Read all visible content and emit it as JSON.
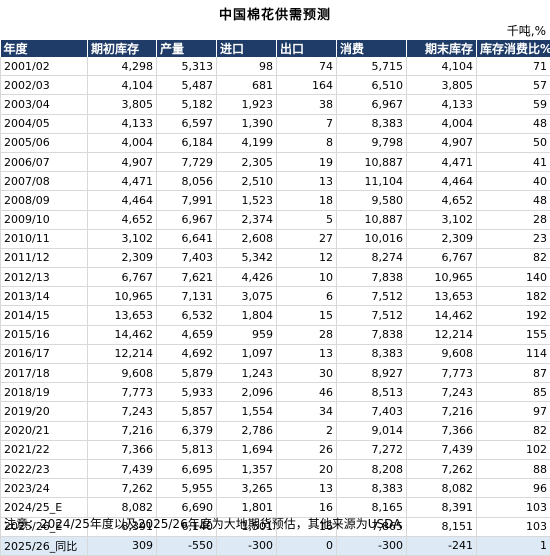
{
  "title": "中国棉花供需预测",
  "unit": "千吨,%",
  "headers": [
    "年度",
    "期初库存",
    "产量",
    "进口",
    "出口",
    "消费",
    "期末库存",
    "库存消费比%"
  ],
  "rows": [
    [
      "2001/02",
      "4,298",
      "5,313",
      "98",
      "74",
      "5,715",
      "4,104",
      "71"
    ],
    [
      "2002/03",
      "4,104",
      "5,487",
      "681",
      "164",
      "6,510",
      "3,805",
      "57"
    ],
    [
      "2003/04",
      "3,805",
      "5,182",
      "1,923",
      "38",
      "6,967",
      "4,133",
      "59"
    ],
    [
      "2004/05",
      "4,133",
      "6,597",
      "1,390",
      "7",
      "8,383",
      "4,004",
      "48"
    ],
    [
      "2005/06",
      "4,004",
      "6,184",
      "4,199",
      "8",
      "9,798",
      "4,907",
      "50"
    ],
    [
      "2006/07",
      "4,907",
      "7,729",
      "2,305",
      "19",
      "10,887",
      "4,471",
      "41"
    ],
    [
      "2007/08",
      "4,471",
      "8,056",
      "2,510",
      "13",
      "11,104",
      "4,464",
      "40"
    ],
    [
      "2008/09",
      "4,464",
      "7,991",
      "1,523",
      "18",
      "9,580",
      "4,652",
      "48"
    ],
    [
      "2009/10",
      "4,652",
      "6,967",
      "2,374",
      "5",
      "10,887",
      "3,102",
      "28"
    ],
    [
      "2010/11",
      "3,102",
      "6,641",
      "2,608",
      "27",
      "10,016",
      "2,309",
      "23"
    ],
    [
      "2011/12",
      "2,309",
      "7,403",
      "5,342",
      "12",
      "8,274",
      "6,767",
      "82"
    ],
    [
      "2012/13",
      "6,767",
      "7,621",
      "4,426",
      "10",
      "7,838",
      "10,965",
      "140"
    ],
    [
      "2013/14",
      "10,965",
      "7,131",
      "3,075",
      "6",
      "7,512",
      "13,653",
      "182"
    ],
    [
      "2014/15",
      "13,653",
      "6,532",
      "1,804",
      "15",
      "7,512",
      "14,462",
      "192"
    ],
    [
      "2015/16",
      "14,462",
      "4,659",
      "959",
      "28",
      "7,838",
      "12,214",
      "155"
    ],
    [
      "2016/17",
      "12,214",
      "4,692",
      "1,097",
      "13",
      "8,383",
      "9,608",
      "114"
    ],
    [
      "2017/18",
      "9,608",
      "5,879",
      "1,243",
      "30",
      "8,927",
      "7,773",
      "87"
    ],
    [
      "2018/19",
      "7,773",
      "5,933",
      "2,096",
      "46",
      "8,513",
      "7,243",
      "85"
    ],
    [
      "2019/20",
      "7,243",
      "5,857",
      "1,554",
      "34",
      "7,403",
      "7,216",
      "97"
    ],
    [
      "2020/21",
      "7,216",
      "6,379",
      "2,786",
      "2",
      "9,014",
      "7,366",
      "82"
    ],
    [
      "2021/22",
      "7,366",
      "5,813",
      "1,694",
      "26",
      "7,272",
      "7,439",
      "102"
    ],
    [
      "2022/23",
      "7,439",
      "6,695",
      "1,357",
      "20",
      "8,208",
      "7,262",
      "88"
    ],
    [
      "2023/24",
      "7,262",
      "5,955",
      "3,265",
      "13",
      "8,383",
      "8,082",
      "96"
    ],
    [
      "2024/25_E",
      "8,082",
      "6,690",
      "1,801",
      "16",
      "8,165",
      "8,391",
      "103"
    ],
    [
      "2025/26_E",
      "8,391",
      "6,140",
      "1,501",
      "16",
      "7,865",
      "8,151",
      "103"
    ],
    [
      "2025/26_同比",
      "309",
      "-550",
      "-300",
      "0",
      "-300",
      "-241",
      "1"
    ]
  ],
  "note": "注意：2024/25年度以及2025/26年度为大地期货预估，其他来源为USDA"
}
